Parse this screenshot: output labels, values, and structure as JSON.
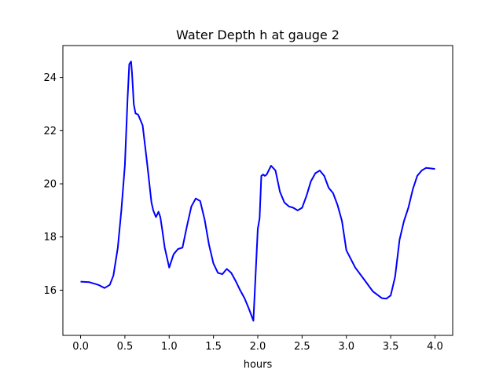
{
  "chart_data": {
    "type": "line",
    "title": "Water Depth h at gauge 2",
    "xlabel": "hours",
    "ylabel": "",
    "xlim": [
      -0.2,
      4.2
    ],
    "ylim": [
      14.3,
      25.2
    ],
    "xticks": [
      0.0,
      0.5,
      1.0,
      1.5,
      2.0,
      2.5,
      3.0,
      3.5,
      4.0
    ],
    "xtick_labels": [
      "0.0",
      "0.5",
      "1.0",
      "1.5",
      "2.0",
      "2.5",
      "3.0",
      "3.5",
      "4.0"
    ],
    "yticks": [
      16,
      18,
      20,
      22,
      24
    ],
    "ytick_labels": [
      "16",
      "18",
      "20",
      "22",
      "24"
    ],
    "grid": false,
    "series": [
      {
        "color": "#0000ff",
        "x": [
          0.0,
          0.1,
          0.2,
          0.27,
          0.33,
          0.37,
          0.42,
          0.46,
          0.5,
          0.53,
          0.55,
          0.57,
          0.58,
          0.59,
          0.6,
          0.62,
          0.65,
          0.7,
          0.75,
          0.8,
          0.82,
          0.85,
          0.88,
          0.9,
          0.92,
          0.95,
          1.0,
          1.05,
          1.1,
          1.15,
          1.2,
          1.25,
          1.3,
          1.35,
          1.4,
          1.45,
          1.5,
          1.55,
          1.6,
          1.65,
          1.7,
          1.75,
          1.8,
          1.85,
          1.9,
          1.95,
          2.0,
          2.02,
          2.03,
          2.04,
          2.06,
          2.08,
          2.1,
          2.15,
          2.2,
          2.25,
          2.3,
          2.35,
          2.4,
          2.45,
          2.5,
          2.55,
          2.6,
          2.65,
          2.7,
          2.75,
          2.8,
          2.85,
          2.9,
          2.95,
          3.0,
          3.1,
          3.2,
          3.3,
          3.4,
          3.45,
          3.5,
          3.55,
          3.6,
          3.65,
          3.7,
          3.75,
          3.8,
          3.85,
          3.9,
          3.95,
          4.0
        ],
        "y": [
          16.32,
          16.3,
          16.2,
          16.08,
          16.2,
          16.55,
          17.6,
          19.0,
          20.7,
          23.2,
          24.5,
          24.6,
          24.2,
          23.6,
          23.0,
          22.65,
          22.6,
          22.2,
          20.8,
          19.3,
          19.0,
          18.75,
          18.95,
          18.75,
          18.3,
          17.6,
          16.85,
          17.35,
          17.55,
          17.6,
          18.4,
          19.15,
          19.45,
          19.35,
          18.65,
          17.7,
          17.0,
          16.65,
          16.6,
          16.8,
          16.65,
          16.35,
          16.0,
          15.7,
          15.3,
          14.85,
          18.3,
          18.7,
          19.5,
          20.3,
          20.35,
          20.3,
          20.35,
          20.68,
          20.5,
          19.7,
          19.3,
          19.15,
          19.1,
          19.0,
          19.1,
          19.55,
          20.1,
          20.4,
          20.5,
          20.3,
          19.85,
          19.65,
          19.2,
          18.6,
          17.5,
          16.85,
          16.4,
          15.95,
          15.7,
          15.68,
          15.8,
          16.5,
          17.9,
          18.6,
          19.1,
          19.8,
          20.3,
          20.5,
          20.6,
          20.58,
          20.56
        ]
      }
    ]
  }
}
